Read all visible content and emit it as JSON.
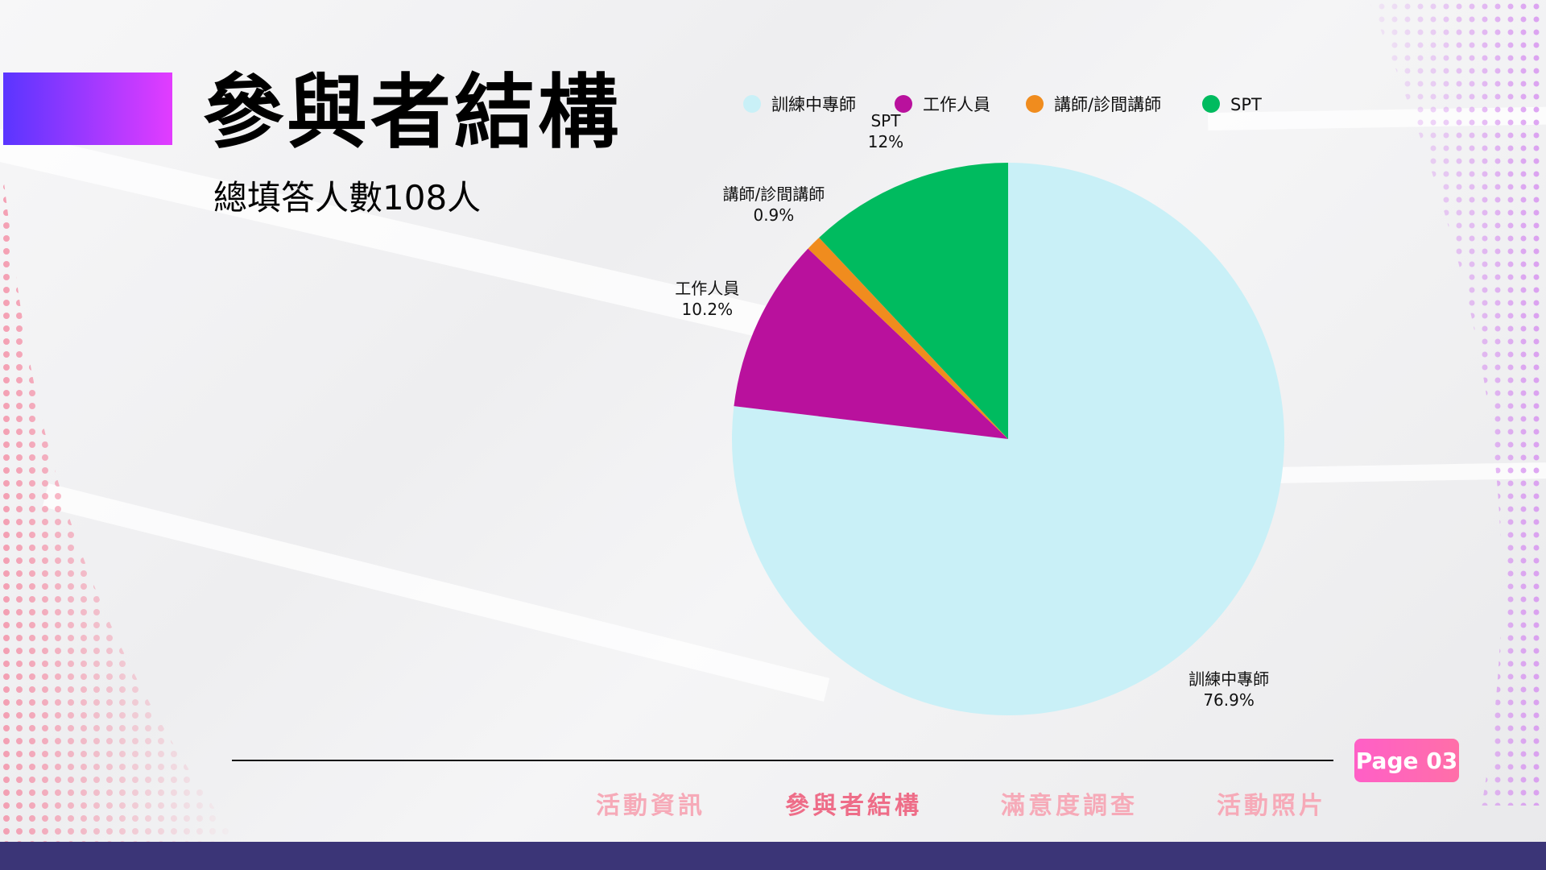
{
  "title": "參與者結構",
  "subtitle": "總填答人數108人",
  "chart_data": {
    "type": "pie",
    "slices": [
      {
        "name": "訓練中專師",
        "value": 76.9,
        "label": "76.9%",
        "color": "#c9f0f7"
      },
      {
        "name": "工作人員",
        "value": 10.2,
        "label": "10.2%",
        "color": "#b9119d"
      },
      {
        "name": "講師/診間講師",
        "value": 0.9,
        "label": "0.9%",
        "color": "#f08c1e"
      },
      {
        "name": "SPT",
        "value": 12,
        "label": "12%",
        "color": "#00bb5f"
      }
    ],
    "legend_position": "top"
  },
  "page_badge": "Page 03",
  "nav": [
    {
      "label": "活動資訊",
      "active": false
    },
    {
      "label": "參與者結構",
      "active": true
    },
    {
      "label": "滿意度調查",
      "active": false
    },
    {
      "label": "活動照片",
      "active": false
    }
  ],
  "colors": {
    "accent_start": "#5a35ff",
    "accent_end": "#e23cff",
    "footer": "#3b3577",
    "badge": "#ff5fc7",
    "nav_active": "#ee6d88",
    "nav_inactive": "#f6aab8"
  }
}
